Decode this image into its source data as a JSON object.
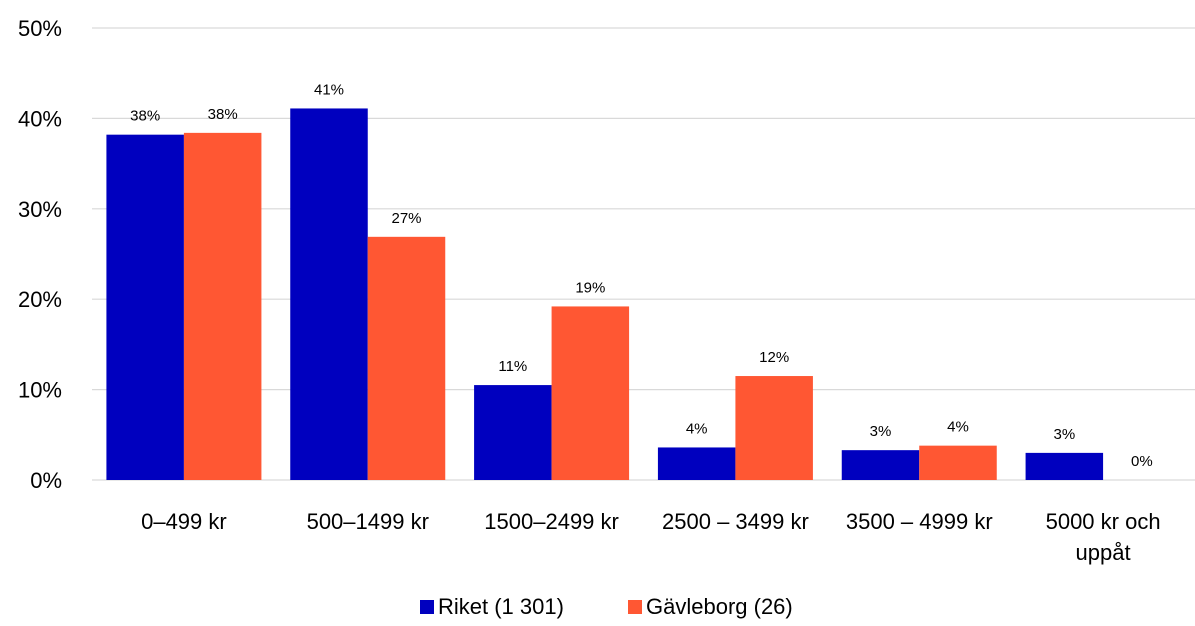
{
  "chart_data": {
    "type": "bar",
    "title": "",
    "xlabel": "",
    "ylabel": "",
    "ylim": [
      0,
      50
    ],
    "yticks": [
      "0%",
      "10%",
      "20%",
      "30%",
      "40%",
      "50%"
    ],
    "grid": true,
    "legend_position": "bottom",
    "categories": [
      [
        "0–499 kr"
      ],
      [
        "500–1499 kr"
      ],
      [
        "1500–2499 kr"
      ],
      [
        "2500 – 3499 kr"
      ],
      [
        "3500 – 4999 kr"
      ],
      [
        "5000 kr och",
        "uppåt"
      ]
    ],
    "series": [
      {
        "name": "Riket (1 301)",
        "color": "#0000BF",
        "values": [
          38.2,
          41.1,
          10.5,
          3.6,
          3.3,
          3.0
        ],
        "labels": [
          "38%",
          "41%",
          "11%",
          "4%",
          "3%",
          "3%"
        ]
      },
      {
        "name": "Gävleborg (26)",
        "color": "#FF5733",
        "values": [
          38.4,
          26.9,
          19.2,
          11.5,
          3.8,
          0.0
        ],
        "labels": [
          "38%",
          "27%",
          "19%",
          "12%",
          "4%",
          "0%"
        ]
      }
    ]
  }
}
